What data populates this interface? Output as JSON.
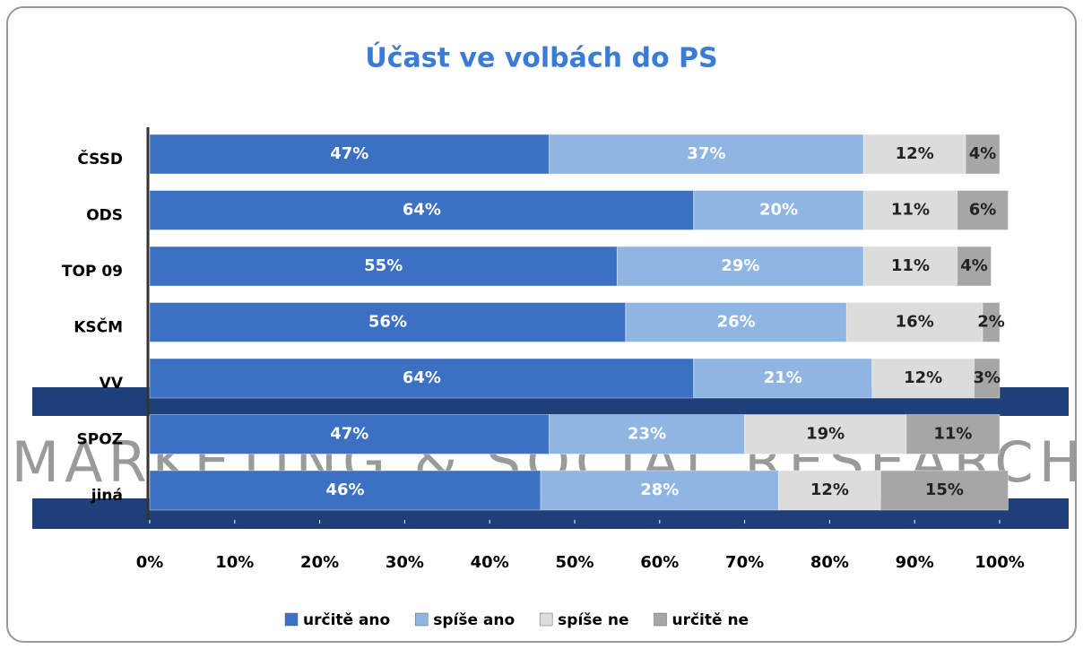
{
  "chart_data": {
    "type": "stacked_bar_horizontal",
    "title": "Účast ve volbách do PS",
    "watermark": "MARKETING & SOCIAL RESEARCH",
    "categories": [
      "ČSSD",
      "ODS",
      "TOP 09",
      "KSČM",
      "VV",
      "SPOZ",
      "jiná"
    ],
    "series": [
      {
        "name": "určitě ano",
        "color": "#3c70c2",
        "values": [
          47,
          64,
          55,
          56,
          64,
          47,
          46
        ],
        "value_labels": [
          "47%",
          "64%",
          "55%",
          "56%",
          "64%",
          "47%",
          "46%"
        ]
      },
      {
        "name": "spíše ano",
        "color": "#8fb5e3",
        "values": [
          37,
          20,
          29,
          26,
          21,
          23,
          28
        ],
        "value_labels": [
          "37%",
          "20%",
          "29%",
          "26%",
          "21%",
          "23%",
          "28%"
        ]
      },
      {
        "name": "spíše ne",
        "color": "#dcdcdc",
        "values": [
          12,
          11,
          11,
          16,
          12,
          19,
          12
        ],
        "value_labels": [
          "12%",
          "11%",
          "11%",
          "16%",
          "12%",
          "19%",
          "12%"
        ]
      },
      {
        "name": "určitě ne",
        "color": "#a6a6a6",
        "values": [
          4,
          6,
          4,
          2,
          3,
          11,
          15
        ],
        "value_labels": [
          "4%",
          "6%",
          "4%",
          "2%",
          "3%",
          "11%",
          "15%"
        ]
      }
    ],
    "xlim": [
      0,
      100
    ],
    "xticks": [
      {
        "value": 0,
        "label": "0%"
      },
      {
        "value": 10,
        "label": "10%"
      },
      {
        "value": 20,
        "label": "20%"
      },
      {
        "value": 30,
        "label": "30%"
      },
      {
        "value": 40,
        "label": "40%"
      },
      {
        "value": 50,
        "label": "50%"
      },
      {
        "value": 60,
        "label": "60%"
      },
      {
        "value": 70,
        "label": "70%"
      },
      {
        "value": 80,
        "label": "80%"
      },
      {
        "value": 90,
        "label": "90%"
      },
      {
        "value": 100,
        "label": "100%"
      }
    ],
    "legend": "bottom"
  }
}
